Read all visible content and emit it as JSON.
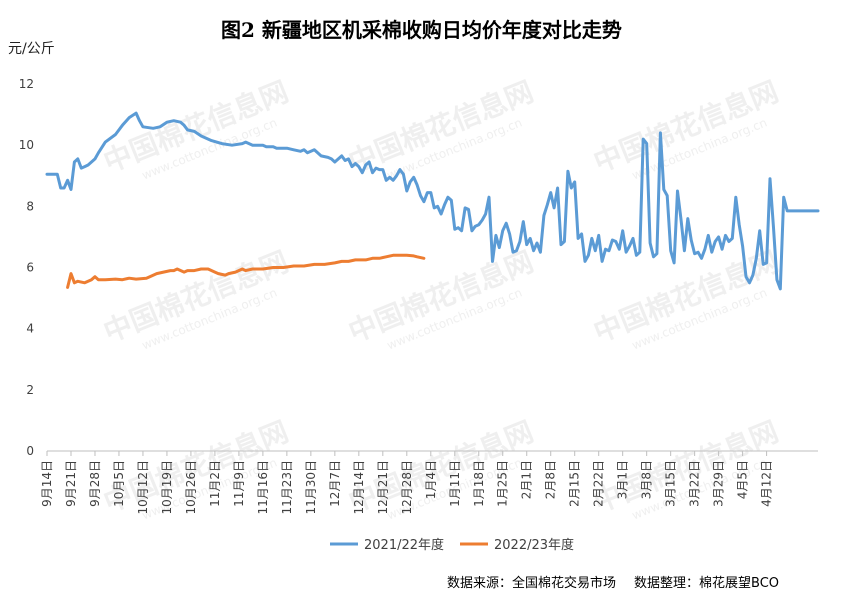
{
  "chart_data": {
    "type": "line",
    "title": "图2  新疆地区机采棉收购日均价年度对比走势",
    "ylabel": "元/公斤",
    "ylim": [
      0,
      12
    ],
    "yticks": [
      0,
      2,
      4,
      6,
      8,
      10,
      12
    ],
    "grid": false,
    "legend_position": "bottom",
    "categories": [
      "9月14日",
      "9月21日",
      "9月28日",
      "10月5日",
      "10月12日",
      "10月19日",
      "10月26日",
      "11月2日",
      "11月9日",
      "11月16日",
      "11月23日",
      "11月30日",
      "12月7日",
      "12月14日",
      "12月21日",
      "12月28日",
      "1月4日",
      "1月11日",
      "1月18日",
      "1月25日",
      "2月1日",
      "2月8日",
      "2月15日",
      "2月22日",
      "3月1日",
      "3月8日",
      "3月15日",
      "3月22日",
      "3月29日",
      "4月5日",
      "4月12日"
    ],
    "series": [
      {
        "name": "2021/22年度",
        "color": "#5B9BD5",
        "points": [
          [
            0,
            9.05
          ],
          [
            3,
            9.05
          ],
          [
            4,
            8.6
          ],
          [
            5,
            8.6
          ],
          [
            6,
            8.85
          ],
          [
            7,
            8.55
          ],
          [
            8,
            9.45
          ],
          [
            9,
            9.55
          ],
          [
            10,
            9.25
          ],
          [
            11,
            9.3
          ],
          [
            12,
            9.35
          ],
          [
            14,
            9.55
          ],
          [
            15,
            9.75
          ],
          [
            17,
            10.1
          ],
          [
            20,
            10.35
          ],
          [
            22,
            10.65
          ],
          [
            24,
            10.9
          ],
          [
            26,
            11.05
          ],
          [
            27,
            10.8
          ],
          [
            28,
            10.6
          ],
          [
            31,
            10.55
          ],
          [
            33,
            10.6
          ],
          [
            35,
            10.75
          ],
          [
            37,
            10.8
          ],
          [
            39,
            10.75
          ],
          [
            40,
            10.65
          ],
          [
            41,
            10.5
          ],
          [
            43,
            10.45
          ],
          [
            45,
            10.3
          ],
          [
            48,
            10.15
          ],
          [
            51,
            10.05
          ],
          [
            54,
            10.0
          ],
          [
            57,
            10.05
          ],
          [
            58,
            10.1
          ],
          [
            60,
            10.0
          ],
          [
            62,
            10.0
          ],
          [
            63,
            10.0
          ],
          [
            64,
            9.95
          ],
          [
            66,
            9.95
          ],
          [
            67,
            9.9
          ],
          [
            70,
            9.9
          ],
          [
            72,
            9.85
          ],
          [
            74,
            9.8
          ],
          [
            75,
            9.85
          ],
          [
            76,
            9.75
          ],
          [
            77,
            9.8
          ],
          [
            78,
            9.85
          ],
          [
            80,
            9.65
          ],
          [
            82,
            9.6
          ],
          [
            83,
            9.55
          ],
          [
            84,
            9.45
          ],
          [
            86,
            9.65
          ],
          [
            87,
            9.5
          ],
          [
            88,
            9.55
          ],
          [
            89,
            9.3
          ],
          [
            90,
            9.4
          ],
          [
            91,
            9.3
          ],
          [
            92,
            9.1
          ],
          [
            93,
            9.35
          ],
          [
            94,
            9.45
          ],
          [
            95,
            9.1
          ],
          [
            96,
            9.25
          ],
          [
            97,
            9.2
          ],
          [
            98,
            9.2
          ],
          [
            99,
            8.85
          ],
          [
            100,
            8.95
          ],
          [
            101,
            8.85
          ],
          [
            102,
            9.0
          ],
          [
            103,
            9.2
          ],
          [
            104,
            9.05
          ],
          [
            105,
            8.5
          ],
          [
            106,
            8.8
          ],
          [
            107,
            8.95
          ],
          [
            108,
            8.7
          ],
          [
            109,
            8.35
          ],
          [
            110,
            8.15
          ],
          [
            111,
            8.45
          ],
          [
            112,
            8.45
          ],
          [
            113,
            7.95
          ],
          [
            114,
            8.0
          ],
          [
            115,
            7.75
          ],
          [
            116,
            8.05
          ],
          [
            117,
            8.3
          ],
          [
            118,
            8.2
          ],
          [
            119,
            7.25
          ],
          [
            120,
            7.3
          ],
          [
            121,
            7.2
          ],
          [
            122,
            7.95
          ],
          [
            123,
            7.9
          ],
          [
            124,
            7.2
          ],
          [
            125,
            7.35
          ],
          [
            126,
            7.4
          ],
          [
            127,
            7.55
          ],
          [
            128,
            7.75
          ],
          [
            129,
            8.3
          ],
          [
            130,
            6.2
          ],
          [
            131,
            7.05
          ],
          [
            132,
            6.65
          ],
          [
            133,
            7.2
          ],
          [
            134,
            7.45
          ],
          [
            135,
            7.1
          ],
          [
            136,
            6.5
          ],
          [
            137,
            6.55
          ],
          [
            138,
            6.85
          ],
          [
            139,
            7.5
          ],
          [
            140,
            6.75
          ],
          [
            141,
            6.95
          ],
          [
            142,
            6.55
          ],
          [
            143,
            6.8
          ],
          [
            144,
            6.5
          ],
          [
            145,
            7.7
          ],
          [
            146,
            8.05
          ],
          [
            147,
            8.45
          ],
          [
            148,
            7.95
          ],
          [
            149,
            8.6
          ],
          [
            150,
            6.75
          ],
          [
            151,
            6.85
          ],
          [
            152,
            9.15
          ],
          [
            153,
            8.6
          ],
          [
            154,
            8.8
          ],
          [
            155,
            6.95
          ],
          [
            156,
            7.1
          ],
          [
            157,
            6.2
          ],
          [
            158,
            6.4
          ],
          [
            159,
            6.95
          ],
          [
            160,
            6.55
          ],
          [
            161,
            7.05
          ],
          [
            162,
            6.2
          ],
          [
            163,
            6.6
          ],
          [
            164,
            6.55
          ],
          [
            165,
            6.9
          ],
          [
            166,
            6.85
          ],
          [
            167,
            6.6
          ],
          [
            168,
            7.2
          ],
          [
            169,
            6.5
          ],
          [
            170,
            6.7
          ],
          [
            171,
            6.95
          ],
          [
            172,
            6.4
          ],
          [
            173,
            6.5
          ],
          [
            174,
            10.2
          ],
          [
            175,
            10.05
          ],
          [
            176,
            6.8
          ],
          [
            177,
            6.35
          ],
          [
            178,
            6.45
          ],
          [
            179,
            10.4
          ],
          [
            180,
            8.55
          ],
          [
            181,
            8.35
          ],
          [
            182,
            6.55
          ],
          [
            183,
            6.15
          ],
          [
            184,
            8.5
          ],
          [
            185,
            7.6
          ],
          [
            186,
            6.55
          ],
          [
            187,
            7.6
          ],
          [
            188,
            6.9
          ],
          [
            189,
            6.45
          ],
          [
            190,
            6.5
          ],
          [
            191,
            6.3
          ],
          [
            192,
            6.6
          ],
          [
            193,
            7.05
          ],
          [
            194,
            6.5
          ],
          [
            195,
            6.85
          ],
          [
            196,
            7.0
          ],
          [
            197,
            6.6
          ],
          [
            198,
            7.05
          ],
          [
            199,
            6.85
          ],
          [
            200,
            6.95
          ],
          [
            201,
            8.3
          ],
          [
            202,
            7.4
          ],
          [
            203,
            6.7
          ],
          [
            204,
            5.7
          ],
          [
            205,
            5.5
          ],
          [
            206,
            5.75
          ],
          [
            207,
            6.3
          ],
          [
            208,
            7.2
          ],
          [
            209,
            6.1
          ],
          [
            210,
            6.15
          ],
          [
            211,
            8.9
          ],
          [
            212,
            7.3
          ],
          [
            213,
            5.6
          ],
          [
            214,
            5.3
          ],
          [
            215,
            8.3
          ],
          [
            216,
            7.85
          ],
          [
            220,
            7.85
          ],
          [
            225,
            7.85
          ]
        ]
      },
      {
        "name": "2022/23年度",
        "color": "#ED7D31",
        "points": [
          [
            6,
            5.35
          ],
          [
            7,
            5.8
          ],
          [
            8,
            5.5
          ],
          [
            9,
            5.55
          ],
          [
            11,
            5.5
          ],
          [
            13,
            5.6
          ],
          [
            14,
            5.7
          ],
          [
            15,
            5.6
          ],
          [
            17,
            5.6
          ],
          [
            20,
            5.62
          ],
          [
            22,
            5.6
          ],
          [
            24,
            5.65
          ],
          [
            26,
            5.62
          ],
          [
            29,
            5.65
          ],
          [
            30,
            5.7
          ],
          [
            32,
            5.8
          ],
          [
            34,
            5.85
          ],
          [
            36,
            5.9
          ],
          [
            37,
            5.9
          ],
          [
            38,
            5.95
          ],
          [
            40,
            5.85
          ],
          [
            41,
            5.9
          ],
          [
            43,
            5.9
          ],
          [
            45,
            5.95
          ],
          [
            47,
            5.95
          ],
          [
            49,
            5.85
          ],
          [
            50,
            5.8
          ],
          [
            52,
            5.75
          ],
          [
            53,
            5.8
          ],
          [
            55,
            5.85
          ],
          [
            57,
            5.95
          ],
          [
            58,
            5.9
          ],
          [
            60,
            5.95
          ],
          [
            63,
            5.95
          ],
          [
            66,
            6.0
          ],
          [
            69,
            6.0
          ],
          [
            72,
            6.05
          ],
          [
            75,
            6.05
          ],
          [
            78,
            6.1
          ],
          [
            81,
            6.1
          ],
          [
            84,
            6.15
          ],
          [
            86,
            6.2
          ],
          [
            88,
            6.2
          ],
          [
            90,
            6.25
          ],
          [
            93,
            6.25
          ],
          [
            95,
            6.3
          ],
          [
            97,
            6.3
          ],
          [
            99,
            6.35
          ],
          [
            101,
            6.4
          ],
          [
            103,
            6.4
          ],
          [
            105,
            6.4
          ],
          [
            107,
            6.38
          ],
          [
            108,
            6.35
          ],
          [
            110,
            6.3
          ]
        ]
      }
    ],
    "x_total_points": 226
  },
  "source": {
    "data_source": "数据来源：全国棉花交易市场",
    "data_compiler": "数据整理：棉花展望BCO"
  },
  "watermark": {
    "text": "中国棉花信息网",
    "url": "www.cottonchina.org.cn"
  }
}
